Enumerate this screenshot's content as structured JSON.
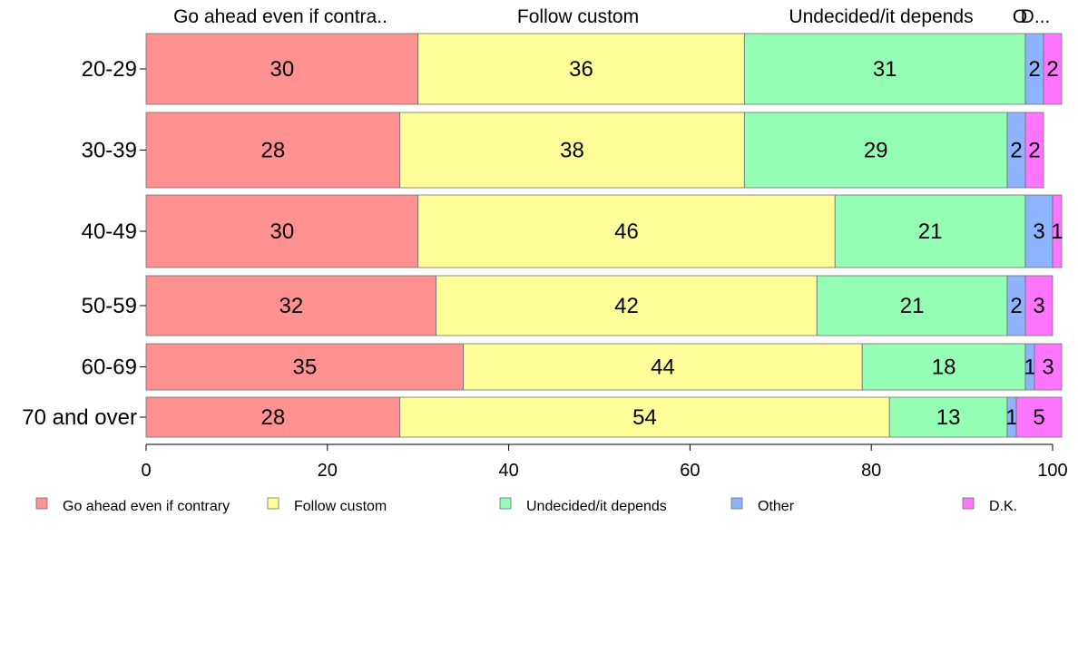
{
  "chart_data": {
    "type": "bar",
    "orientation": "horizontal",
    "stacked": true,
    "categories": [
      "20-29",
      "30-39",
      "40-49",
      "50-59",
      "60-69",
      "70 and over"
    ],
    "series": [
      {
        "name": "Go ahead even if contrary",
        "values": [
          30,
          28,
          30,
          32,
          35,
          28
        ],
        "color": "#ff9290"
      },
      {
        "name": "Follow custom",
        "values": [
          36,
          38,
          46,
          42,
          44,
          54
        ],
        "color": "#ffff99"
      },
      {
        "name": "Undecided/it depends",
        "values": [
          31,
          29,
          21,
          21,
          18,
          13
        ],
        "color": "#94ffb4"
      },
      {
        "name": "Other",
        "values": [
          2,
          2,
          3,
          2,
          1,
          1
        ],
        "color": "#8fb4ff"
      },
      {
        "name": "D.K.",
        "values": [
          2,
          2,
          1,
          3,
          3,
          5
        ],
        "color": "#ff75ff"
      }
    ],
    "top_labels": [
      "Go ahead even if contra..",
      "Follow custom",
      "Undecided/it depends",
      "O",
      "D..."
    ],
    "xlim": [
      0,
      100
    ],
    "xticks": [
      "0",
      "20",
      "40",
      "60",
      "80",
      "100"
    ],
    "grid": false,
    "legend_position": "bottom"
  }
}
